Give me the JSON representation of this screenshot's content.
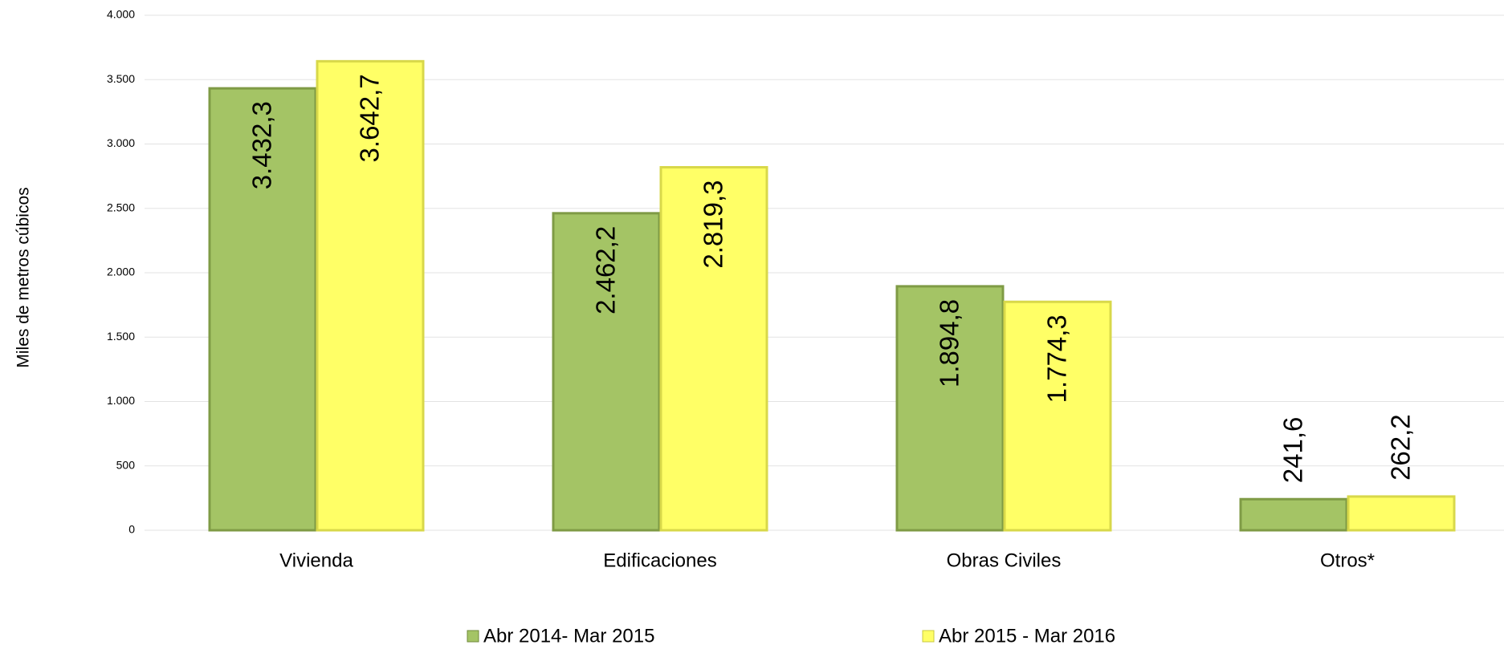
{
  "chart_data": {
    "type": "bar",
    "y_label": "Miles de metros cúbicos",
    "categories": [
      "Vivienda",
      "Edificaciones",
      "Obras Civiles",
      "Otros*"
    ],
    "series": [
      {
        "name": "Abr 2014- Mar 2015",
        "color": "#a4c465",
        "values": [
          3432.3,
          2462.2,
          1894.8,
          241.6
        ],
        "value_labels": [
          "3.432,3",
          "2.462,2",
          "1.894,8",
          "241,6"
        ]
      },
      {
        "name": "Abr 2015 - Mar 2016",
        "color": "#ffff66",
        "values": [
          3642.7,
          2819.3,
          1774.3,
          262.2
        ],
        "value_labels": [
          "3.642,7",
          "2.819,3",
          "1.774,3",
          "262,2"
        ]
      }
    ],
    "ylim": [
      0,
      4000
    ],
    "yticks": [
      0,
      500,
      {
        "value": 1000,
        "label": "1.000"
      },
      {
        "value": 1500,
        "label": "1.500"
      },
      {
        "value": 2000,
        "label": "2.000"
      },
      {
        "value": 2500,
        "label": "2.500"
      },
      {
        "value": 3000,
        "label": "3.000"
      },
      {
        "value": 3500,
        "label": "3.500"
      },
      {
        "value": 4000,
        "label": "4.000"
      }
    ],
    "grid": true,
    "legend": "bottom"
  }
}
